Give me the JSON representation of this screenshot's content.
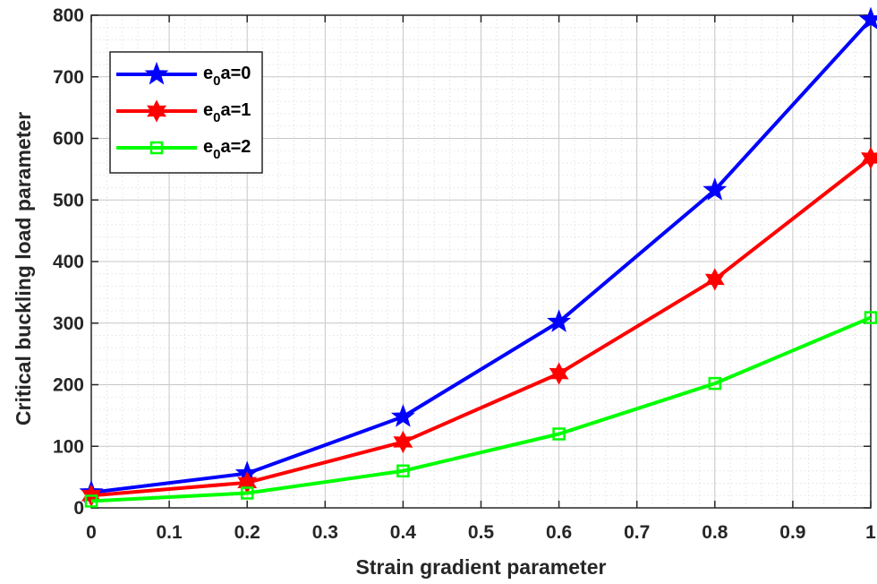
{
  "chart_data": {
    "type": "line",
    "xlabel": "Strain gradient parameter",
    "ylabel": "Critical buckling load parameter",
    "xlim": [
      0,
      1
    ],
    "ylim": [
      0,
      800
    ],
    "x_ticks": [
      "0",
      "0.1",
      "0.2",
      "0.3",
      "0.4",
      "0.5",
      "0.6",
      "0.7",
      "0.8",
      "0.9",
      "1"
    ],
    "y_ticks": [
      "0",
      "100",
      "200",
      "300",
      "400",
      "500",
      "600",
      "700",
      "800"
    ],
    "grid": true,
    "minor_grid": true,
    "legend_position": "top-left",
    "x": [
      0,
      0.2,
      0.4,
      0.6,
      0.8,
      1.0
    ],
    "series": [
      {
        "name": "e0a=0",
        "legend_main": "e",
        "legend_sub": "0",
        "legend_rest": "a=0",
        "color": "#0000ff",
        "marker": "star",
        "values": [
          25,
          56,
          148,
          302,
          516,
          793
        ]
      },
      {
        "name": "e0a=1",
        "legend_main": "e",
        "legend_sub": "0",
        "legend_rest": "a=1",
        "color": "#ff0000",
        "marker": "hexagram",
        "values": [
          20,
          41,
          107,
          218,
          371,
          568
        ]
      },
      {
        "name": "e0a=2",
        "legend_main": "e",
        "legend_sub": "0",
        "legend_rest": "a=2",
        "color": "#00ff00",
        "marker": "square",
        "values": [
          11,
          24,
          60,
          120,
          202,
          309
        ]
      }
    ]
  }
}
